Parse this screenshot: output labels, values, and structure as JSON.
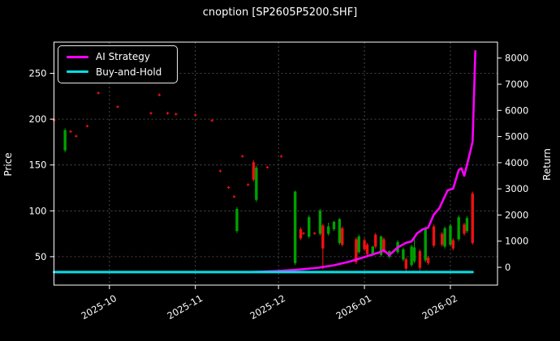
{
  "title": "cnoption [SP2605P5200.SHF]",
  "colors": {
    "background": "#000000",
    "text": "#ffffff",
    "grid": "#5c5c5c",
    "spine": "#ffffff",
    "strategy_line": "#ff00ff",
    "buyhold_line": "#00e0e6",
    "candle_up": "#00a000",
    "candle_down": "#ee1111"
  },
  "legend": {
    "position": "upper-left",
    "items": [
      {
        "label": "AI Strategy",
        "color": "#ff00ff"
      },
      {
        "label": "Buy-and-Hold",
        "color": "#00e0e6"
      }
    ]
  },
  "axes": {
    "left": {
      "label": "Price",
      "ticks": [
        50,
        100,
        150,
        200,
        250
      ],
      "range": [
        19,
        284
      ]
    },
    "right": {
      "label": "Return",
      "ticks": [
        0,
        1000,
        2000,
        3000,
        4000,
        5000,
        6000,
        7000,
        8000
      ],
      "range": [
        -680,
        8610
      ]
    },
    "x": {
      "tick_labels": [
        "2025-10",
        "2025-11",
        "2025-12",
        "2026-01",
        "2026-02"
      ],
      "tick_dates": [
        "2025-10-01",
        "2025-11-01",
        "2025-12-01",
        "2026-01-01",
        "2026-02-01"
      ],
      "range": [
        "2025-09-11",
        "2026-02-18"
      ]
    }
  },
  "chart_data": {
    "type": "candlestick+line",
    "title": "cnoption [SP2605P5200.SHF]",
    "xlabel": "",
    "ylabel_left": "Price",
    "ylabel_right": "Return",
    "grid": true,
    "candles_format": [
      "date",
      "open",
      "high",
      "low",
      "close"
    ],
    "candles": [
      [
        "2025-09-11",
        200,
        201,
        197,
        198
      ],
      [
        "2025-09-15",
        166,
        190,
        164,
        188
      ],
      [
        "2025-09-17",
        187,
        188,
        185,
        186
      ],
      [
        "2025-09-19",
        182,
        183,
        180,
        181
      ],
      [
        "2025-09-23",
        193,
        194,
        191,
        192
      ],
      [
        "2025-09-27",
        229,
        230,
        227,
        228
      ],
      [
        "2025-10-04",
        214,
        215,
        212,
        213
      ],
      [
        "2025-10-16",
        207,
        208,
        205,
        206
      ],
      [
        "2025-10-19",
        227,
        228,
        225,
        226
      ],
      [
        "2025-10-22",
        207,
        208,
        205,
        206
      ],
      [
        "2025-10-25",
        206,
        207,
        204,
        205
      ],
      [
        "2025-11-01",
        205,
        206,
        203,
        204
      ],
      [
        "2025-11-07",
        199,
        200,
        197,
        198
      ],
      [
        "2025-11-10",
        144,
        145,
        142,
        143
      ],
      [
        "2025-11-13",
        126,
        127,
        124,
        125
      ],
      [
        "2025-11-15",
        116,
        117,
        114,
        115
      ],
      [
        "2025-11-16",
        78,
        104,
        76,
        102
      ],
      [
        "2025-11-18",
        160,
        161,
        158,
        159
      ],
      [
        "2025-11-20",
        129,
        130,
        127,
        128
      ],
      [
        "2025-11-22",
        153,
        155,
        132,
        134
      ],
      [
        "2025-11-23",
        112,
        149,
        110,
        147
      ],
      [
        "2025-11-27",
        148,
        149,
        146,
        147
      ],
      [
        "2025-12-02",
        160,
        161,
        158,
        159
      ],
      [
        "2025-12-07",
        43,
        122,
        41,
        121
      ],
      [
        "2025-12-09",
        80,
        82,
        68,
        70
      ],
      [
        "2025-12-10",
        76,
        77,
        74,
        75
      ],
      [
        "2025-12-12",
        72,
        95,
        70,
        93
      ],
      [
        "2025-12-14",
        76,
        77,
        74,
        75
      ],
      [
        "2025-12-16",
        75,
        102,
        73,
        100
      ],
      [
        "2025-12-17",
        84,
        86,
        36,
        59
      ],
      [
        "2025-12-19",
        75,
        87,
        73,
        83
      ],
      [
        "2025-12-21",
        80,
        89,
        78,
        88
      ],
      [
        "2025-12-23",
        65,
        92,
        63,
        91
      ],
      [
        "2025-12-24",
        81,
        83,
        61,
        63
      ],
      [
        "2025-12-29",
        69,
        71,
        42,
        44
      ],
      [
        "2025-12-30",
        55,
        74,
        53,
        72
      ],
      [
        "2026-01-01",
        68,
        70,
        56,
        58
      ],
      [
        "2026-01-02",
        63,
        65,
        51,
        53
      ],
      [
        "2026-01-04",
        53,
        62,
        51,
        61
      ],
      [
        "2026-01-05",
        74,
        76,
        59,
        61
      ],
      [
        "2026-01-07",
        52,
        73,
        50,
        72
      ],
      [
        "2026-01-08",
        69,
        71,
        54,
        56
      ],
      [
        "2026-01-10",
        50,
        57,
        48,
        56
      ],
      [
        "2026-01-13",
        55,
        68,
        53,
        66
      ],
      [
        "2026-01-15",
        47,
        60,
        45,
        58
      ],
      [
        "2026-01-16",
        47,
        49,
        34,
        37
      ],
      [
        "2026-01-18",
        41,
        63,
        39,
        61
      ],
      [
        "2026-01-19",
        45,
        71,
        43,
        60
      ],
      [
        "2026-01-21",
        56,
        58,
        35,
        38
      ],
      [
        "2026-01-23",
        46,
        83,
        44,
        81
      ],
      [
        "2026-01-24",
        49,
        51,
        41,
        43
      ],
      [
        "2026-01-26",
        83,
        85,
        60,
        62
      ],
      [
        "2026-01-29",
        75,
        77,
        61,
        63
      ],
      [
        "2026-01-30",
        61,
        83,
        59,
        81
      ],
      [
        "2026-02-01",
        63,
        86,
        61,
        84
      ],
      [
        "2026-02-02",
        68,
        70,
        57,
        59
      ],
      [
        "2026-02-04",
        69,
        95,
        67,
        93
      ],
      [
        "2026-02-06",
        85,
        87,
        73,
        75
      ],
      [
        "2026-02-07",
        78,
        94,
        76,
        92
      ],
      [
        "2026-02-09",
        119,
        121,
        63,
        65
      ]
    ],
    "series": [
      {
        "name": "AI Strategy",
        "axis": "right",
        "color": "#ff00ff",
        "points": [
          [
            "2025-09-11",
            -180
          ],
          [
            "2025-10-15",
            -180
          ],
          [
            "2025-11-20",
            -180
          ],
          [
            "2025-12-01",
            -140
          ],
          [
            "2025-12-08",
            -90
          ],
          [
            "2025-12-15",
            -20
          ],
          [
            "2025-12-21",
            80
          ],
          [
            "2025-12-27",
            230
          ],
          [
            "2026-01-02",
            430
          ],
          [
            "2026-01-06",
            560
          ],
          [
            "2026-01-08",
            650
          ],
          [
            "2026-01-10",
            470
          ],
          [
            "2026-01-13",
            760
          ],
          [
            "2026-01-16",
            940
          ],
          [
            "2026-01-18",
            990
          ],
          [
            "2026-01-20",
            1300
          ],
          [
            "2026-01-22",
            1450
          ],
          [
            "2026-01-24",
            1520
          ],
          [
            "2026-01-26",
            2010
          ],
          [
            "2026-01-28",
            2260
          ],
          [
            "2026-01-31",
            2940
          ],
          [
            "2026-02-02",
            3010
          ],
          [
            "2026-02-04",
            3720
          ],
          [
            "2026-02-05",
            3790
          ],
          [
            "2026-02-06",
            3500
          ],
          [
            "2026-02-08",
            4340
          ],
          [
            "2026-02-09",
            4800
          ],
          [
            "2026-02-10",
            8270
          ]
        ]
      },
      {
        "name": "Buy-and-Hold",
        "axis": "right",
        "color": "#00e0e6",
        "points": [
          [
            "2025-09-11",
            -180
          ],
          [
            "2026-02-09",
            -180
          ]
        ]
      }
    ]
  }
}
